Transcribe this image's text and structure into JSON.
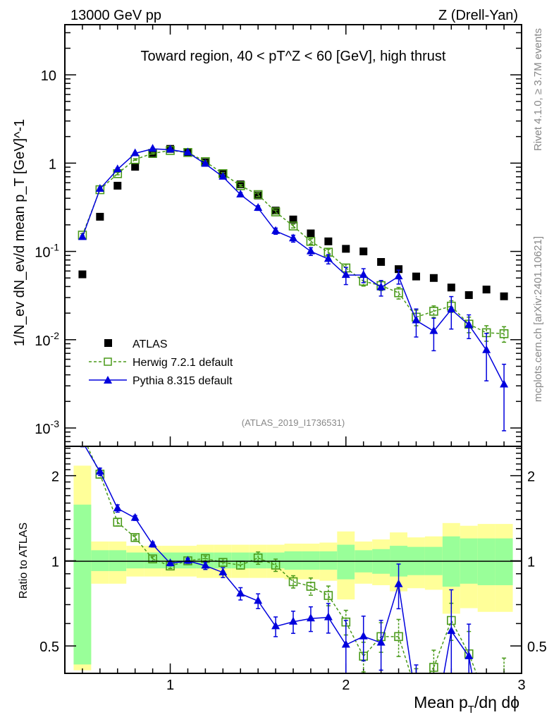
{
  "header": {
    "left": "13000 GeV pp",
    "right": "Z (Drell-Yan)"
  },
  "side": {
    "rivet": "Rivet 4.1.0, ≥ 3.7M events",
    "mcplots": "mcplots.cern.ch [arXiv:2401.10621]"
  },
  "chart_data": [
    {
      "type": "scatter",
      "title": "Toward region, 40 < pT^Z < 60 [GeV], high thrust",
      "title_parts": {
        "a": "Toward region, 40 < p",
        "sup": "Z",
        "sub": "T",
        "b": " < 60 [GeV], high thrust"
      },
      "ylabel": "1/N_ev dN_ev/d mean p_T [GeV]^-1",
      "ylabel_parts": {
        "a": "1/N",
        "s1": "ev",
        "b": " dN",
        "s2": "ev",
        "c": "/d mean p",
        "s3": "T",
        "d": " [GeV]",
        "e": "-1"
      },
      "yscale": "log",
      "ylim": [
        0.00062,
        37
      ],
      "xlim": [
        0.4,
        3.0
      ],
      "yticks": [
        {
          "v": 10,
          "base": "10",
          "exp": ""
        },
        {
          "v": 1,
          "base": "1",
          "exp": ""
        },
        {
          "v": 0.1,
          "base": "10",
          "exp": "-1"
        },
        {
          "v": 0.01,
          "base": "10",
          "exp": "-2"
        },
        {
          "v": 0.001,
          "base": "10",
          "exp": "-3"
        }
      ],
      "watermark": "(ATLAS_2019_I1736531)",
      "legend_position": "bottom-left",
      "x": [
        0.5,
        0.6,
        0.7,
        0.8,
        0.9,
        1.0,
        1.1,
        1.2,
        1.3,
        1.4,
        1.5,
        1.6,
        1.7,
        1.8,
        1.9,
        2.0,
        2.1,
        2.2,
        2.3,
        2.4,
        2.5,
        2.6,
        2.7,
        2.8,
        2.9
      ],
      "series": [
        {
          "name": "ATLAS",
          "color": "#000000",
          "marker": "square-filled",
          "values": [
            0.055,
            0.247,
            0.555,
            0.91,
            1.27,
            1.45,
            1.32,
            1.02,
            0.77,
            0.575,
            0.43,
            0.29,
            0.23,
            0.16,
            0.13,
            0.107,
            0.1,
            0.076,
            0.063,
            0.052,
            0.05,
            0.039,
            0.032,
            0.037,
            0.031
          ]
        },
        {
          "name": "Herwig 7.2.1 default",
          "color": "#4a9a1a",
          "marker": "square-open",
          "line": "dashed",
          "values": [
            0.153,
            0.5,
            0.76,
            1.1,
            1.29,
            1.39,
            1.32,
            1.04,
            0.76,
            0.555,
            0.44,
            0.28,
            0.194,
            0.13,
            0.098,
            0.065,
            0.046,
            0.041,
            0.034,
            0.018,
            0.021,
            0.024,
            0.015,
            0.012,
            0.0117
          ],
          "relerr": [
            0.04,
            0.03,
            0.03,
            0.02,
            0.02,
            0.02,
            0.02,
            0.02,
            0.03,
            0.03,
            0.05,
            0.05,
            0.05,
            0.07,
            0.08,
            0.1,
            0.12,
            0.12,
            0.15,
            0.2,
            0.15,
            0.15,
            0.2,
            0.2,
            0.2
          ]
        },
        {
          "name": "Pythia 8.315 default",
          "color": "#0000dd",
          "marker": "triangle-filled",
          "line": "solid",
          "values": [
            0.145,
            0.51,
            0.85,
            1.29,
            1.45,
            1.42,
            1.32,
            0.98,
            0.7,
            0.44,
            0.31,
            0.17,
            0.14,
            0.1,
            0.082,
            0.054,
            0.054,
            0.039,
            0.052,
            0.0165,
            0.0125,
            0.022,
            0.0147,
            0.0076,
            0.0031
          ],
          "relerr": [
            0.04,
            0.03,
            0.03,
            0.02,
            0.02,
            0.02,
            0.02,
            0.03,
            0.04,
            0.05,
            0.06,
            0.08,
            0.09,
            0.1,
            0.12,
            0.22,
            0.18,
            0.2,
            0.18,
            0.35,
            0.4,
            0.4,
            0.3,
            0.55,
            0.7
          ]
        }
      ]
    },
    {
      "type": "scatter",
      "ylabel": "Ratio to ATLAS",
      "yscale": "log",
      "ylim": [
        0.4,
        2.54
      ],
      "xlim": [
        0.4,
        3.0
      ],
      "yticks": [
        {
          "v": 2,
          "label": "2"
        },
        {
          "v": 1,
          "label": "1"
        },
        {
          "v": 0.5,
          "label": "0.5"
        }
      ],
      "xticks": [
        {
          "v": 1,
          "label": "1"
        },
        {
          "v": 2,
          "label": "2"
        },
        {
          "v": 3,
          "label": "3"
        }
      ],
      "xlabel_parts": {
        "a": "Mean p",
        "sub": "T",
        "b": "/dη dϕ"
      },
      "band_colors": {
        "outer": "#ffff99",
        "inner": "#99ff99"
      },
      "band_outer": [
        [
          0.41,
          2.17
        ],
        [
          0.83,
          1.17
        ],
        [
          0.83,
          1.17
        ],
        [
          0.88,
          1.13
        ],
        [
          0.88,
          1.13
        ],
        [
          0.88,
          1.13
        ],
        [
          0.88,
          1.13
        ],
        [
          0.87,
          1.14
        ],
        [
          0.87,
          1.14
        ],
        [
          0.87,
          1.14
        ],
        [
          0.87,
          1.14
        ],
        [
          0.87,
          1.14
        ],
        [
          0.86,
          1.15
        ],
        [
          0.86,
          1.15
        ],
        [
          0.85,
          1.16
        ],
        [
          0.73,
          1.27
        ],
        [
          0.83,
          1.17
        ],
        [
          0.82,
          1.19
        ],
        [
          0.78,
          1.26
        ],
        [
          0.8,
          1.21
        ],
        [
          0.79,
          1.22
        ],
        [
          0.65,
          1.36
        ],
        [
          0.68,
          1.33
        ],
        [
          0.66,
          1.35
        ],
        [
          0.66,
          1.35
        ]
      ],
      "band_inner": [
        [
          0.43,
          1.58
        ],
        [
          0.92,
          1.09
        ],
        [
          0.92,
          1.09
        ],
        [
          0.94,
          1.07
        ],
        [
          0.94,
          1.07
        ],
        [
          0.94,
          1.07
        ],
        [
          0.94,
          1.07
        ],
        [
          0.94,
          1.07
        ],
        [
          0.94,
          1.07
        ],
        [
          0.94,
          1.07
        ],
        [
          0.94,
          1.07
        ],
        [
          0.94,
          1.07
        ],
        [
          0.93,
          1.08
        ],
        [
          0.93,
          1.08
        ],
        [
          0.93,
          1.08
        ],
        [
          0.86,
          1.14
        ],
        [
          0.91,
          1.09
        ],
        [
          0.9,
          1.1
        ],
        [
          0.88,
          1.13
        ],
        [
          0.89,
          1.12
        ],
        [
          0.89,
          1.12
        ],
        [
          0.81,
          1.22
        ],
        [
          0.83,
          1.2
        ],
        [
          0.82,
          1.2
        ],
        [
          0.82,
          1.2
        ]
      ]
    }
  ]
}
